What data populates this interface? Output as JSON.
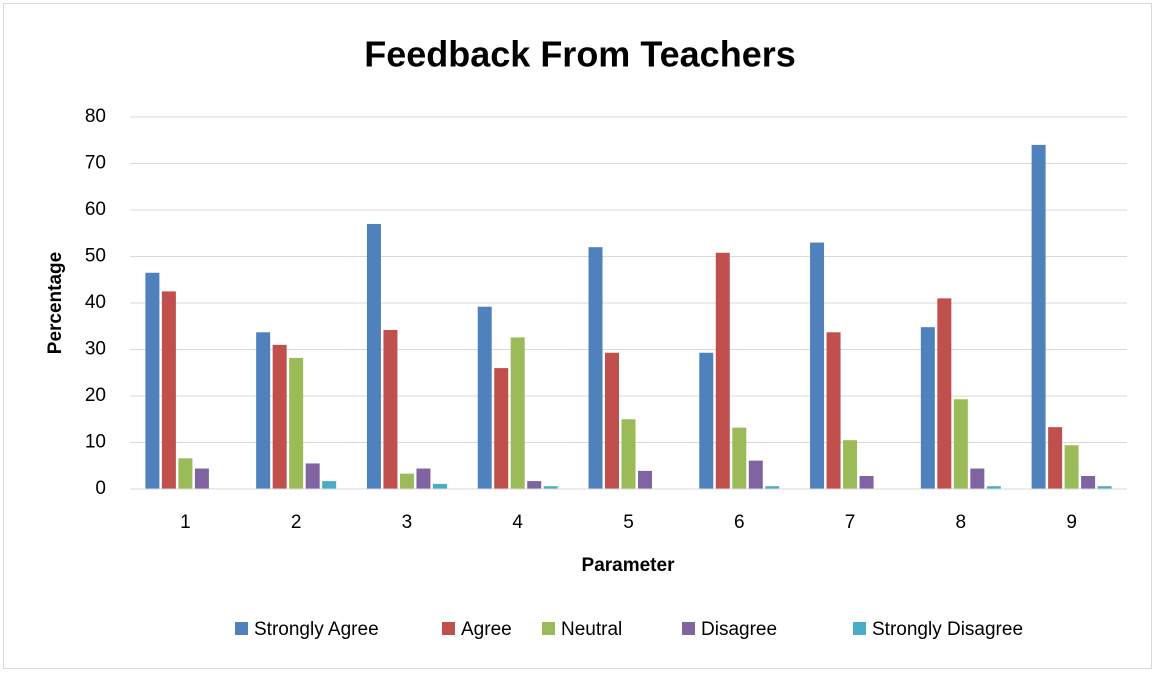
{
  "chart_data": {
    "type": "bar",
    "title": "Feedback From Teachers",
    "x_label": "Parameter",
    "y_label": "Percentage",
    "categories": [
      "1",
      "2",
      "3",
      "4",
      "5",
      "6",
      "7",
      "8",
      "9"
    ],
    "series": [
      {
        "name": "Strongly Agree",
        "color": "#4f81bd",
        "values": [
          46.5,
          33.7,
          57,
          39.2,
          52,
          29.3,
          53,
          34.8,
          74
        ]
      },
      {
        "name": "Agree",
        "color": "#c0504d",
        "values": [
          42.5,
          31,
          34.2,
          26,
          29.3,
          50.8,
          33.7,
          41,
          13.3
        ]
      },
      {
        "name": "Neutral",
        "color": "#9bbb59",
        "values": [
          6.6,
          28.2,
          3.3,
          32.6,
          15,
          13.2,
          10.5,
          19.3,
          9.4
        ]
      },
      {
        "name": "Disagree",
        "color": "#8064a2",
        "values": [
          4.4,
          5.5,
          4.4,
          1.7,
          3.9,
          6.1,
          2.8,
          4.4,
          2.8
        ]
      },
      {
        "name": "Strongly Disagree",
        "color": "#4bacc6",
        "values": [
          0,
          1.7,
          1.1,
          0.6,
          0,
          0.6,
          0,
          0.6,
          0.6
        ]
      }
    ],
    "ylim": [
      0,
      80
    ],
    "yticks": [
      0,
      10,
      20,
      30,
      40,
      50,
      60,
      70,
      80
    ],
    "grid": true,
    "legend": "bottom"
  }
}
